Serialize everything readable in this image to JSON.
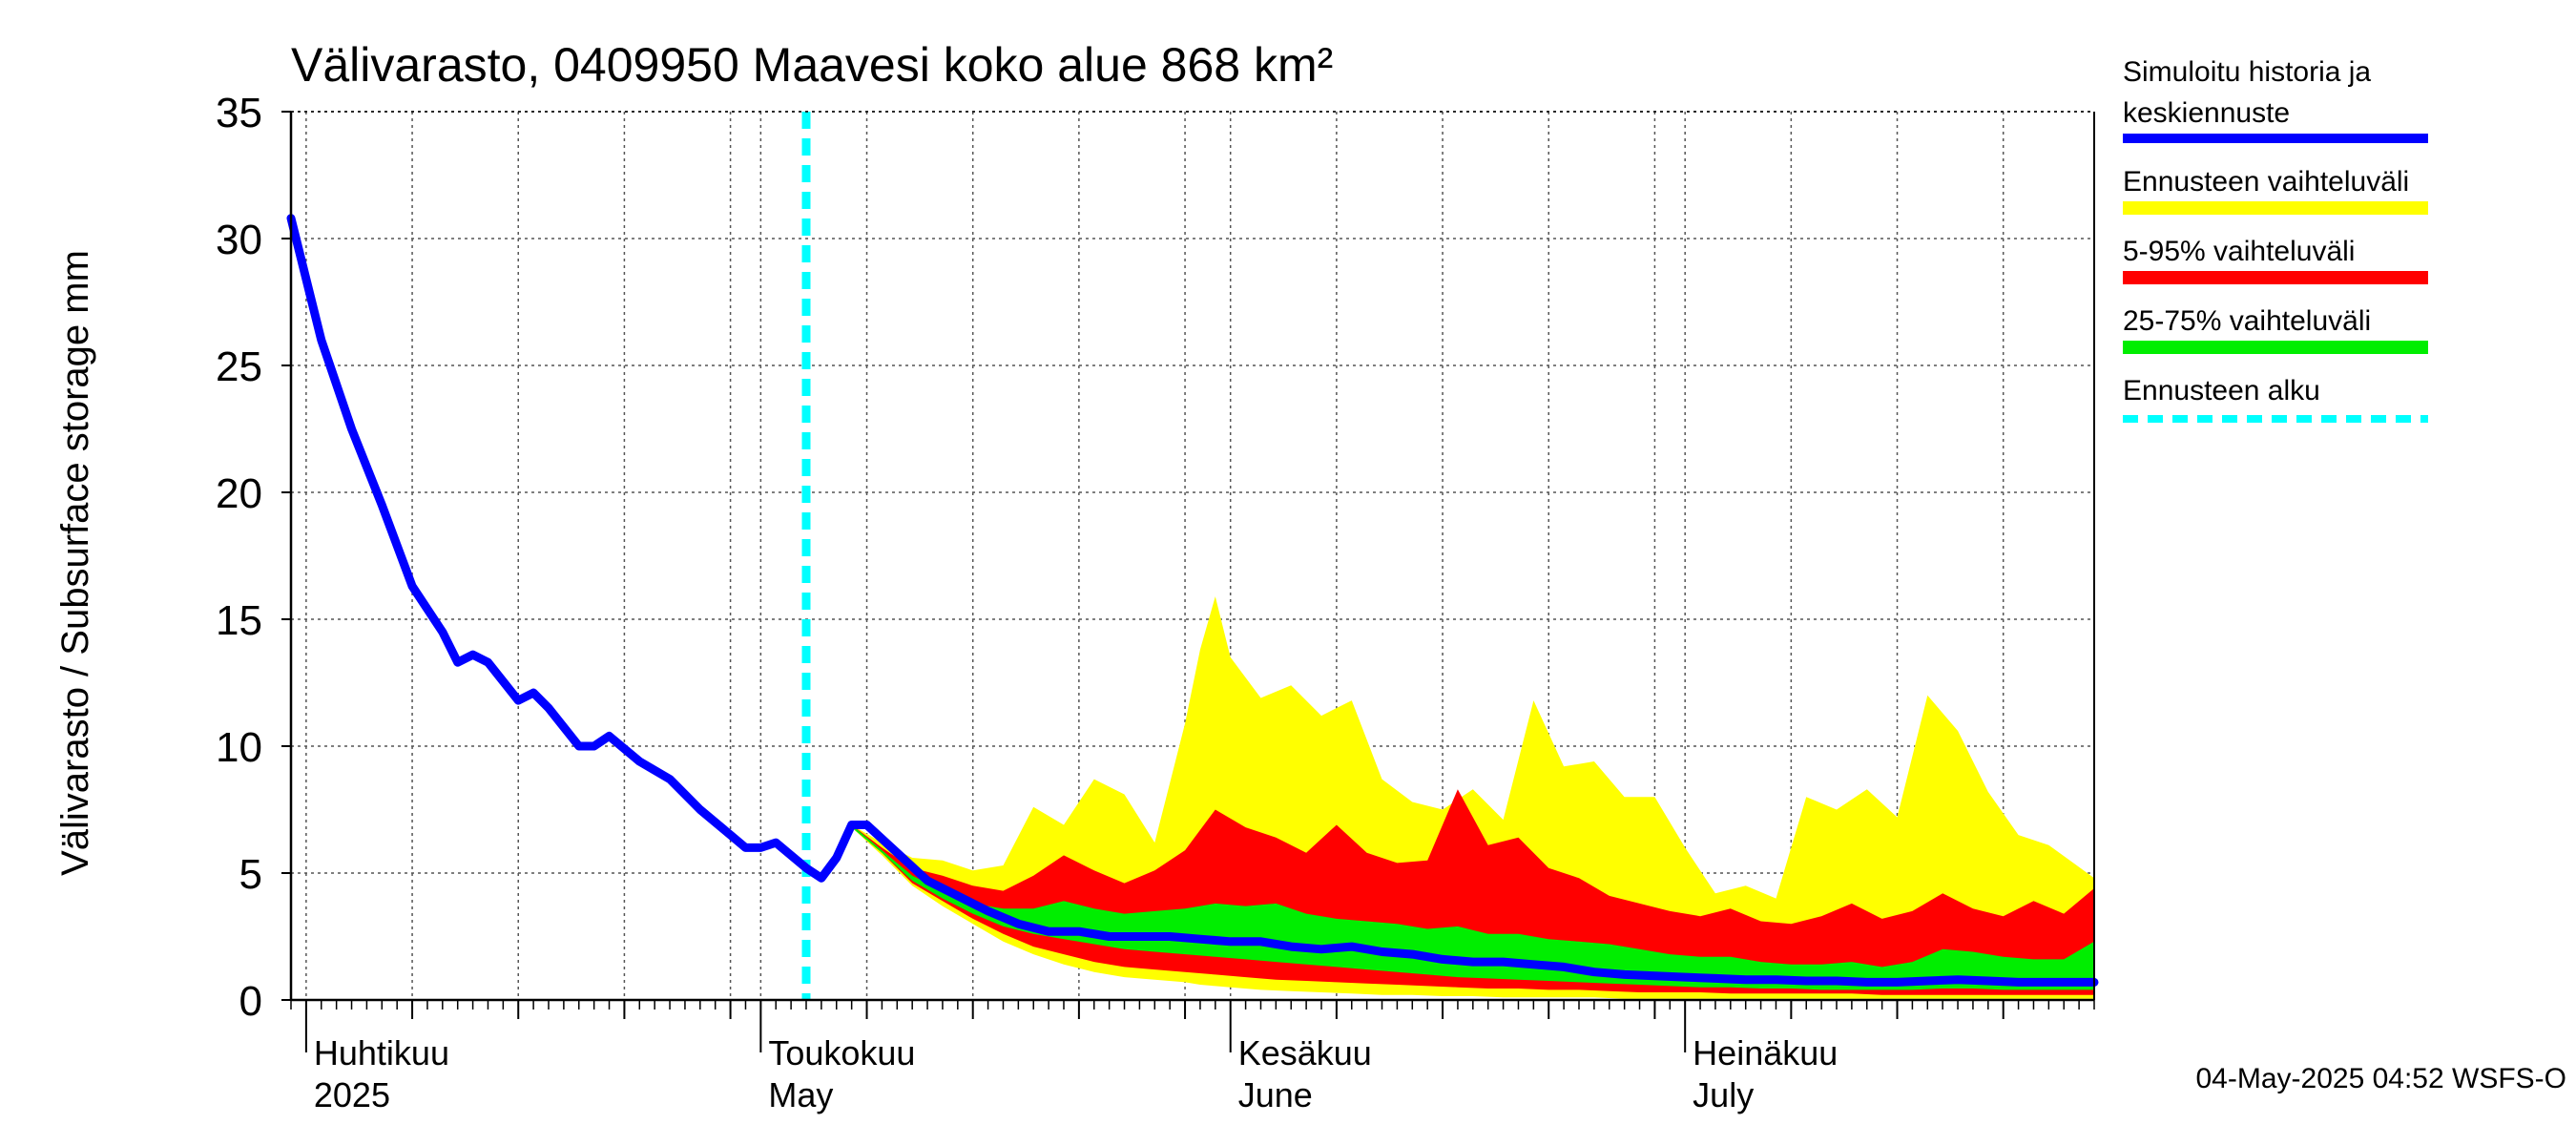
{
  "chart_data": {
    "type": "area",
    "title": "Välivarasto, 0409950 Maavesi koko alue 868 km²",
    "ylabel": "Välivarasto / Subsurface storage  mm",
    "ylim": [
      0,
      35
    ],
    "yticks": [
      0,
      5,
      10,
      15,
      20,
      25,
      30,
      35
    ],
    "xlim": [
      "2025-03-31",
      "2025-07-28"
    ],
    "grid": true,
    "legend_position": "right",
    "month_labels": [
      {
        "date": "2025-04-01",
        "line1": "Huhtikuu",
        "line2": "2025"
      },
      {
        "date": "2025-05-01",
        "line1": "Toukokuu",
        "line2": "May"
      },
      {
        "date": "2025-06-01",
        "line1": "Kesäkuu",
        "line2": "June"
      },
      {
        "date": "2025-07-01",
        "line1": "Heinäkuu",
        "line2": "July"
      }
    ],
    "forecast_start": "2025-05-04",
    "legend": [
      {
        "label": "Simuloitu historia ja keskiennuste",
        "line1": "Simuloitu historia ja",
        "line2": "keskiennuste",
        "color": "#0000ff",
        "style": "solid"
      },
      {
        "label": "Ennusteen vaihteluväli",
        "color": "#ffff00",
        "style": "solid"
      },
      {
        "label": "5-95% vaihteluväli",
        "color": "#ff0000",
        "style": "solid"
      },
      {
        "label": "25-75% vaihteluväli",
        "color": "#00ee00",
        "style": "solid"
      },
      {
        "label": "Ennusteen alku",
        "color": "#00ffff",
        "style": "dashed"
      }
    ],
    "series": [
      {
        "name": "Simuloitu historia ja keskiennuste",
        "color": "#0000ff",
        "points": [
          [
            "2025-03-31",
            30.8
          ],
          [
            "2025-04-02",
            26.0
          ],
          [
            "2025-04-04",
            22.5
          ],
          [
            "2025-04-06",
            19.5
          ],
          [
            "2025-04-08",
            16.3
          ],
          [
            "2025-04-10",
            14.5
          ],
          [
            "2025-04-11",
            13.3
          ],
          [
            "2025-04-12",
            13.6
          ],
          [
            "2025-04-13",
            13.3
          ],
          [
            "2025-04-15",
            11.8
          ],
          [
            "2025-04-16",
            12.1
          ],
          [
            "2025-04-17",
            11.5
          ],
          [
            "2025-04-19",
            10.0
          ],
          [
            "2025-04-20",
            10.0
          ],
          [
            "2025-04-21",
            10.4
          ],
          [
            "2025-04-23",
            9.4
          ],
          [
            "2025-04-25",
            8.7
          ],
          [
            "2025-04-27",
            7.5
          ],
          [
            "2025-04-29",
            6.5
          ],
          [
            "2025-04-30",
            6.0
          ],
          [
            "2025-05-01",
            6.0
          ],
          [
            "2025-05-02",
            6.2
          ],
          [
            "2025-05-04",
            5.2
          ],
          [
            "2025-05-05",
            4.8
          ],
          [
            "2025-05-06",
            5.6
          ],
          [
            "2025-05-07",
            6.9
          ],
          [
            "2025-05-08",
            6.9
          ],
          [
            "2025-05-10",
            5.8
          ],
          [
            "2025-05-12",
            4.7
          ],
          [
            "2025-05-14",
            4.1
          ],
          [
            "2025-05-16",
            3.5
          ],
          [
            "2025-05-18",
            3.0
          ],
          [
            "2025-05-20",
            2.7
          ],
          [
            "2025-05-22",
            2.7
          ],
          [
            "2025-05-24",
            2.5
          ],
          [
            "2025-05-26",
            2.5
          ],
          [
            "2025-05-28",
            2.5
          ],
          [
            "2025-05-30",
            2.4
          ],
          [
            "2025-06-01",
            2.3
          ],
          [
            "2025-06-03",
            2.3
          ],
          [
            "2025-06-05",
            2.1
          ],
          [
            "2025-06-07",
            2.0
          ],
          [
            "2025-06-09",
            2.1
          ],
          [
            "2025-06-11",
            1.9
          ],
          [
            "2025-06-13",
            1.8
          ],
          [
            "2025-06-15",
            1.6
          ],
          [
            "2025-06-17",
            1.5
          ],
          [
            "2025-06-19",
            1.5
          ],
          [
            "2025-06-21",
            1.4
          ],
          [
            "2025-06-23",
            1.3
          ],
          [
            "2025-06-25",
            1.1
          ],
          [
            "2025-06-27",
            1.0
          ],
          [
            "2025-06-29",
            0.95
          ],
          [
            "2025-07-01",
            0.9
          ],
          [
            "2025-07-03",
            0.85
          ],
          [
            "2025-07-05",
            0.8
          ],
          [
            "2025-07-07",
            0.8
          ],
          [
            "2025-07-09",
            0.75
          ],
          [
            "2025-07-11",
            0.75
          ],
          [
            "2025-07-13",
            0.7
          ],
          [
            "2025-07-15",
            0.7
          ],
          [
            "2025-07-17",
            0.75
          ],
          [
            "2025-07-19",
            0.8
          ],
          [
            "2025-07-21",
            0.75
          ],
          [
            "2025-07-23",
            0.7
          ],
          [
            "2025-07-25",
            0.7
          ],
          [
            "2025-07-28",
            0.7
          ]
        ]
      },
      {
        "name": "Ennusteen vaihteluväli",
        "color": "#ffff00",
        "x": [
          "2025-05-07",
          "2025-05-09",
          "2025-05-11",
          "2025-05-13",
          "2025-05-15",
          "2025-05-17",
          "2025-05-19",
          "2025-05-21",
          "2025-05-23",
          "2025-05-25",
          "2025-05-27",
          "2025-05-29",
          "2025-05-30",
          "2025-05-31",
          "2025-06-01",
          "2025-06-03",
          "2025-06-05",
          "2025-06-07",
          "2025-06-09",
          "2025-06-11",
          "2025-06-13",
          "2025-06-15",
          "2025-06-17",
          "2025-06-19",
          "2025-06-21",
          "2025-06-23",
          "2025-06-25",
          "2025-06-27",
          "2025-06-29",
          "2025-07-01",
          "2025-07-03",
          "2025-07-05",
          "2025-07-07",
          "2025-07-09",
          "2025-07-11",
          "2025-07-13",
          "2025-07-15",
          "2025-07-17",
          "2025-07-19",
          "2025-07-21",
          "2025-07-23",
          "2025-07-25",
          "2025-07-28"
        ],
        "upper": [
          6.9,
          6.2,
          5.6,
          5.5,
          5.1,
          5.3,
          7.6,
          6.9,
          8.7,
          8.1,
          6.2,
          10.9,
          13.8,
          15.9,
          13.5,
          11.9,
          12.4,
          11.2,
          11.8,
          8.7,
          7.8,
          7.5,
          8.3,
          7.1,
          11.8,
          9.2,
          9.4,
          8.0,
          8.0,
          6.0,
          4.2,
          4.5,
          4.0,
          8.0,
          7.5,
          8.3,
          7.2,
          12.0,
          10.6,
          8.2,
          6.5,
          6.1,
          4.8
        ],
        "lower": [
          6.8,
          5.7,
          4.5,
          3.7,
          3.0,
          2.3,
          1.8,
          1.4,
          1.1,
          0.9,
          0.8,
          0.7,
          0.6,
          0.55,
          0.5,
          0.4,
          0.35,
          0.3,
          0.25,
          0.2,
          0.2,
          0.15,
          0.15,
          0.1,
          0.1,
          0.1,
          0.1,
          0.05,
          0.05,
          0.05,
          0.05,
          0.05,
          0.05,
          0.05,
          0.05,
          0.05,
          0.05,
          0.05,
          0.05,
          0.05,
          0.05,
          0.05,
          0.05
        ]
      },
      {
        "name": "5-95% vaihteluväli",
        "color": "#ff0000",
        "x": [
          "2025-05-07",
          "2025-05-09",
          "2025-05-11",
          "2025-05-13",
          "2025-05-15",
          "2025-05-17",
          "2025-05-19",
          "2025-05-21",
          "2025-05-23",
          "2025-05-25",
          "2025-05-27",
          "2025-05-29",
          "2025-05-31",
          "2025-06-02",
          "2025-06-04",
          "2025-06-06",
          "2025-06-08",
          "2025-06-10",
          "2025-06-12",
          "2025-06-14",
          "2025-06-16",
          "2025-06-18",
          "2025-06-20",
          "2025-06-22",
          "2025-06-24",
          "2025-06-26",
          "2025-06-28",
          "2025-06-30",
          "2025-07-02",
          "2025-07-04",
          "2025-07-06",
          "2025-07-08",
          "2025-07-10",
          "2025-07-12",
          "2025-07-14",
          "2025-07-16",
          "2025-07-18",
          "2025-07-20",
          "2025-07-22",
          "2025-07-24",
          "2025-07-26",
          "2025-07-28"
        ],
        "upper": [
          6.9,
          6.0,
          5.2,
          4.9,
          4.5,
          4.3,
          4.9,
          5.7,
          5.1,
          4.6,
          5.1,
          5.9,
          7.5,
          6.8,
          6.4,
          5.8,
          6.9,
          5.8,
          5.4,
          5.5,
          8.3,
          6.1,
          6.4,
          5.2,
          4.8,
          4.1,
          3.8,
          3.5,
          3.3,
          3.6,
          3.1,
          3.0,
          3.3,
          3.8,
          3.2,
          3.5,
          4.2,
          3.6,
          3.3,
          3.9,
          3.4,
          4.4
        ],
        "lower": [
          6.8,
          5.8,
          4.6,
          3.9,
          3.2,
          2.6,
          2.1,
          1.8,
          1.5,
          1.3,
          1.2,
          1.1,
          1.0,
          0.9,
          0.8,
          0.75,
          0.7,
          0.65,
          0.6,
          0.55,
          0.5,
          0.45,
          0.45,
          0.4,
          0.4,
          0.35,
          0.3,
          0.3,
          0.3,
          0.25,
          0.25,
          0.25,
          0.25,
          0.25,
          0.2,
          0.2,
          0.2,
          0.2,
          0.2,
          0.2,
          0.2,
          0.2
        ]
      },
      {
        "name": "25-75% vaihteluväli",
        "color": "#00ee00",
        "x": [
          "2025-05-07",
          "2025-05-09",
          "2025-05-11",
          "2025-05-13",
          "2025-05-15",
          "2025-05-17",
          "2025-05-19",
          "2025-05-21",
          "2025-05-23",
          "2025-05-25",
          "2025-05-27",
          "2025-05-29",
          "2025-05-31",
          "2025-06-02",
          "2025-06-04",
          "2025-06-06",
          "2025-06-08",
          "2025-06-10",
          "2025-06-12",
          "2025-06-14",
          "2025-06-16",
          "2025-06-18",
          "2025-06-20",
          "2025-06-22",
          "2025-06-24",
          "2025-06-26",
          "2025-06-28",
          "2025-06-30",
          "2025-07-02",
          "2025-07-04",
          "2025-07-06",
          "2025-07-08",
          "2025-07-10",
          "2025-07-12",
          "2025-07-14",
          "2025-07-16",
          "2025-07-18",
          "2025-07-20",
          "2025-07-22",
          "2025-07-24",
          "2025-07-26",
          "2025-07-28"
        ],
        "upper": [
          6.9,
          5.9,
          4.9,
          4.3,
          3.8,
          3.6,
          3.6,
          3.9,
          3.6,
          3.4,
          3.5,
          3.6,
          3.8,
          3.7,
          3.8,
          3.4,
          3.2,
          3.1,
          3.0,
          2.8,
          2.9,
          2.6,
          2.6,
          2.4,
          2.3,
          2.2,
          2.0,
          1.8,
          1.7,
          1.7,
          1.5,
          1.4,
          1.4,
          1.5,
          1.3,
          1.5,
          2.0,
          1.9,
          1.7,
          1.6,
          1.6,
          2.3
        ],
        "lower": [
          6.8,
          5.8,
          4.7,
          4.0,
          3.4,
          2.9,
          2.6,
          2.4,
          2.2,
          2.0,
          1.9,
          1.8,
          1.7,
          1.6,
          1.5,
          1.4,
          1.3,
          1.2,
          1.1,
          1.0,
          0.9,
          0.85,
          0.8,
          0.75,
          0.7,
          0.65,
          0.6,
          0.55,
          0.5,
          0.5,
          0.45,
          0.45,
          0.4,
          0.4,
          0.4,
          0.4,
          0.45,
          0.45,
          0.4,
          0.4,
          0.4,
          0.4
        ]
      }
    ]
  },
  "footer": {
    "timestamp": "04-May-2025 04:52 WSFS-O"
  }
}
